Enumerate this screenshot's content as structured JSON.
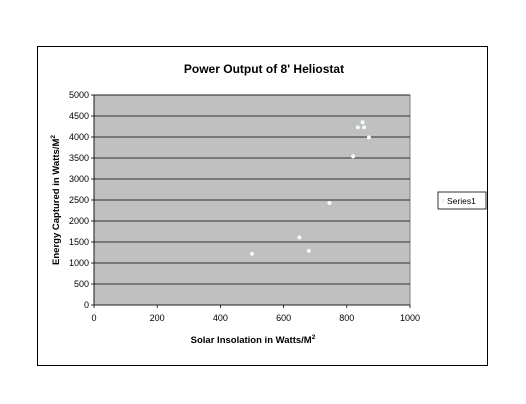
{
  "chart_data": {
    "type": "scatter",
    "title": "Power Output of 8' Heliostat",
    "xlabel": "Solar Insolation in Watts/M",
    "xlabel_sup": "2",
    "ylabel": "Energy Captured in Watts/M",
    "ylabel_sup": "2",
    "xlim": [
      0,
      1000
    ],
    "ylim": [
      0,
      5000
    ],
    "xticks": [
      "0",
      "200",
      "400",
      "600",
      "800",
      "1000"
    ],
    "yticks": [
      "0",
      "500",
      "1000",
      "1500",
      "2000",
      "2500",
      "3000",
      "3500",
      "4000",
      "4500",
      "5000"
    ],
    "grid": "horizontal",
    "legend_position": "right",
    "plot_bg_color": "#c0c0c0",
    "marker_color": "#e8ffff",
    "series": [
      {
        "name": "Series1",
        "x": [
          500,
          650,
          680,
          745,
          820,
          835,
          850,
          855,
          870
        ],
        "y": [
          1220,
          1610,
          1290,
          2430,
          3540,
          4230,
          4350,
          4230,
          3990
        ]
      }
    ]
  }
}
